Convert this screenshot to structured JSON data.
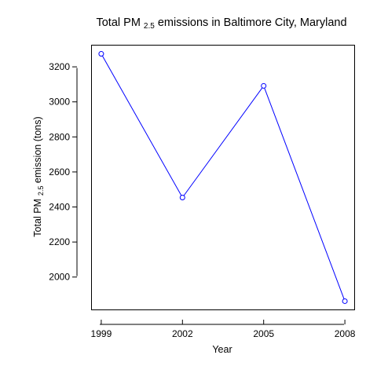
{
  "chart_data": {
    "type": "line",
    "title": {
      "pre": "Total PM",
      "sub": "2.5",
      "post": " emissions in Baltimore City, Maryland"
    },
    "xlabel": "Year",
    "ylabel": {
      "pre": "Total PM",
      "sub": "2.5",
      "post": " emission (tons)"
    },
    "x": [
      1999,
      2002,
      2005,
      2008
    ],
    "x_tick_labels": [
      "1999",
      "2002",
      "2005",
      "2008"
    ],
    "series": [
      {
        "values": [
          3274.2,
          2453.9,
          3091.4,
          1862.3
        ]
      }
    ],
    "y_ticks": [
      2000,
      2200,
      2400,
      2600,
      2800,
      3000,
      3200
    ],
    "y_tick_labels": [
      "2000",
      "2200",
      "2400",
      "2600",
      "2800",
      "3000",
      "3200"
    ],
    "ylim": [
      1812.8,
      3323.7
    ],
    "xlim": [
      1998.64,
      2008.36
    ],
    "line_color": "#0000ff",
    "marker": "open-circle",
    "grid": false
  }
}
